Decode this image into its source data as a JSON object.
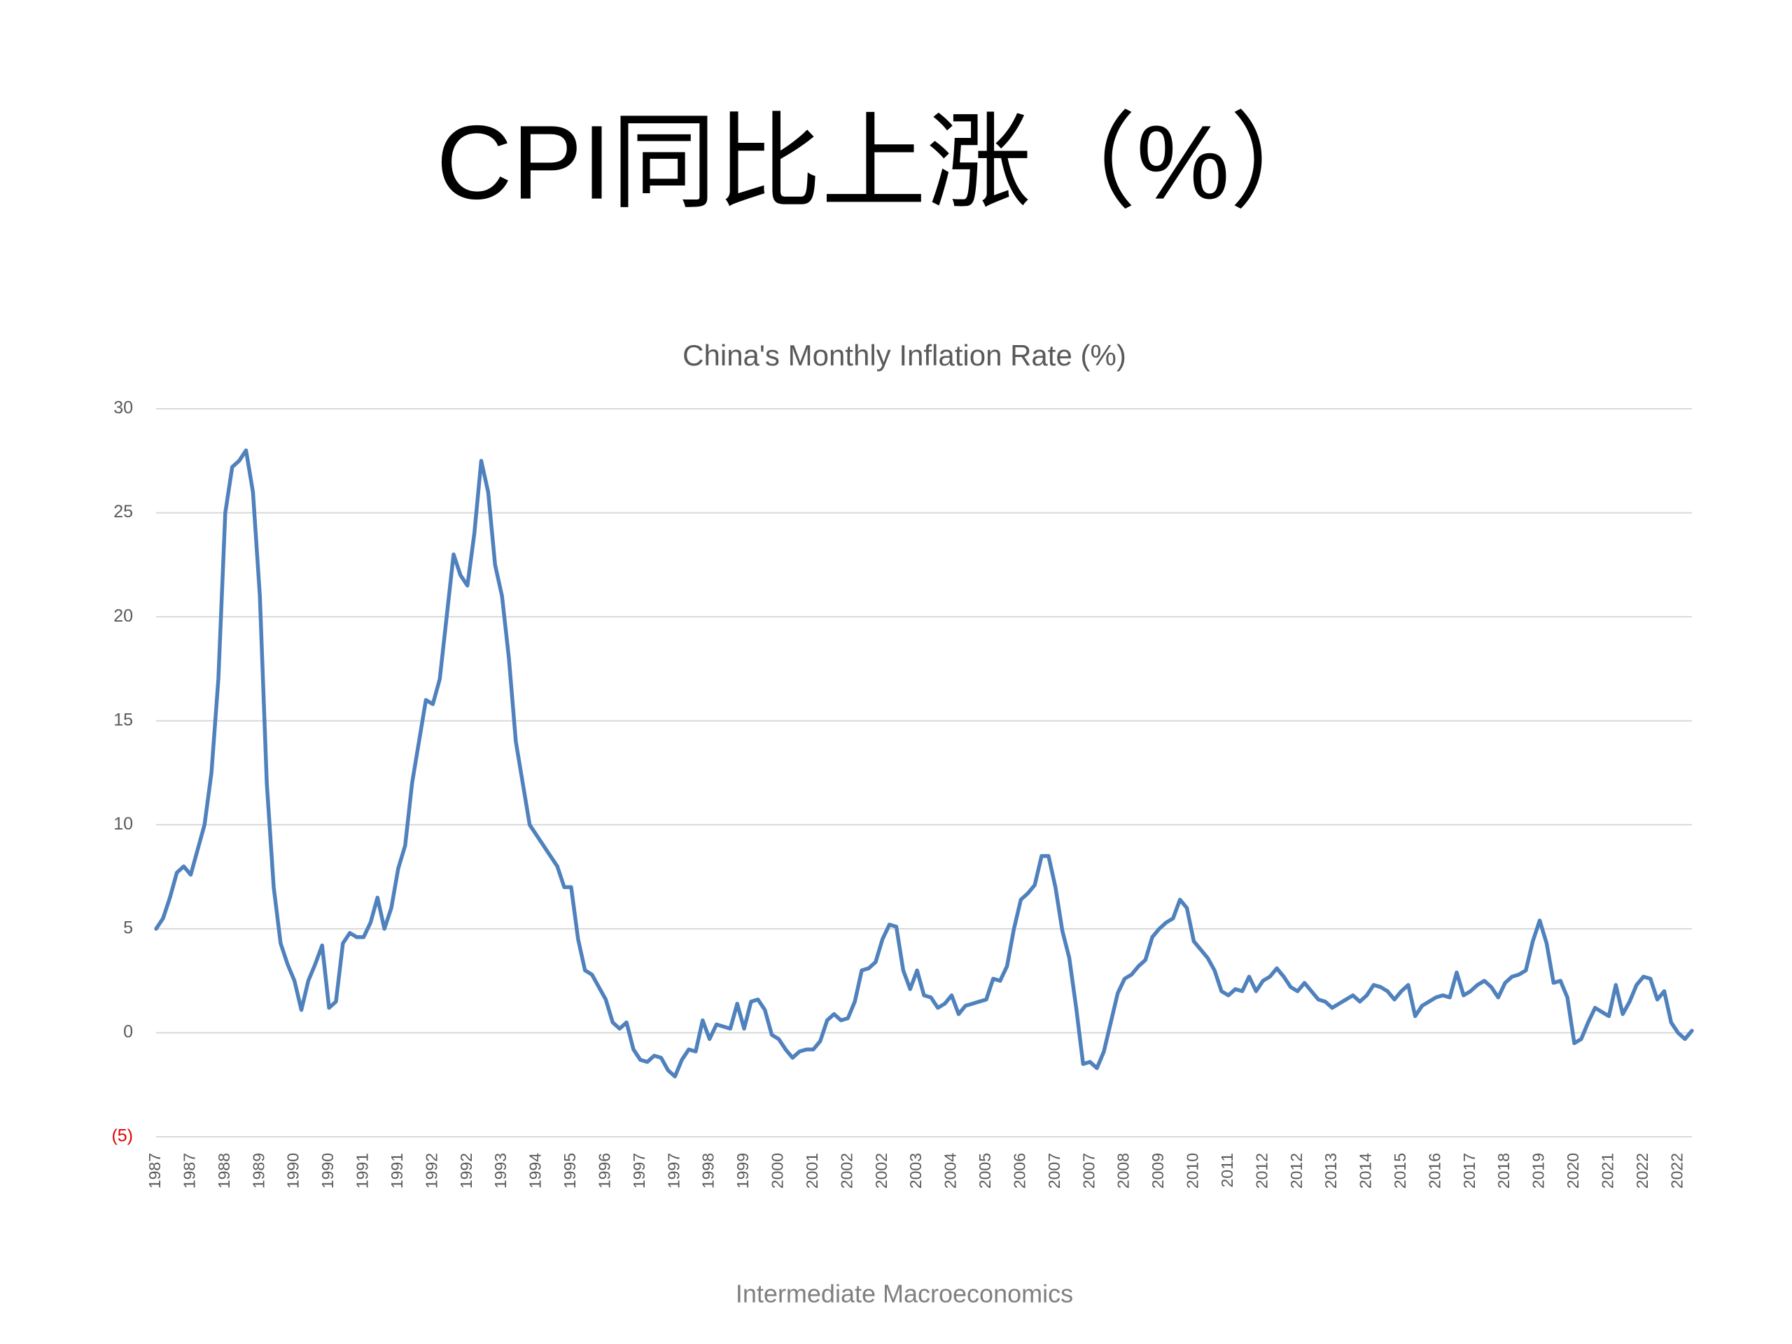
{
  "slide_title": "CPI同比上涨（%）",
  "footer": "Intermediate Macroeconomics",
  "chart_data": {
    "type": "line",
    "title": "China's Monthly Inflation Rate (%)",
    "color": "#4f81bd",
    "grid": true,
    "negative_tick_color": "#e00000",
    "ylim": [
      -5,
      30
    ],
    "yticks": [
      {
        "value": -5,
        "label": "(5)"
      },
      0,
      5,
      10,
      15,
      20,
      25,
      30
    ],
    "categories": [
      "1987",
      null,
      null,
      null,
      null,
      "1987",
      null,
      null,
      null,
      null,
      "1988",
      null,
      null,
      null,
      null,
      "1989",
      null,
      null,
      null,
      null,
      "1990",
      null,
      null,
      null,
      null,
      "1990",
      null,
      null,
      null,
      null,
      "1991",
      null,
      null,
      null,
      null,
      "1991",
      null,
      null,
      null,
      null,
      "1992",
      null,
      null,
      null,
      null,
      "1992",
      null,
      null,
      null,
      null,
      "1993",
      null,
      null,
      null,
      null,
      "1994",
      null,
      null,
      null,
      null,
      "1995",
      null,
      null,
      null,
      null,
      "1996",
      null,
      null,
      null,
      null,
      "1997",
      null,
      null,
      null,
      null,
      "1997",
      null,
      null,
      null,
      null,
      "1998",
      null,
      null,
      null,
      null,
      "1999",
      null,
      null,
      null,
      null,
      "2000",
      null,
      null,
      null,
      null,
      "2001",
      null,
      null,
      null,
      null,
      "2002",
      null,
      null,
      null,
      null,
      "2002",
      null,
      null,
      null,
      null,
      "2003",
      null,
      null,
      null,
      null,
      "2004",
      null,
      null,
      null,
      null,
      "2005",
      null,
      null,
      null,
      null,
      "2006",
      null,
      null,
      null,
      null,
      "2007",
      null,
      null,
      null,
      null,
      "2007",
      null,
      null,
      null,
      null,
      "2008",
      null,
      null,
      null,
      null,
      "2009",
      null,
      null,
      null,
      null,
      "2010",
      null,
      null,
      null,
      null,
      "2011",
      null,
      null,
      null,
      null,
      "2012",
      null,
      null,
      null,
      null,
      "2012",
      null,
      null,
      null,
      null,
      "2013",
      null,
      null,
      null,
      null,
      "2014",
      null,
      null,
      null,
      null,
      "2015",
      null,
      null,
      null,
      null,
      "2016",
      null,
      null,
      null,
      null,
      "2017",
      null,
      null,
      null,
      null,
      "2018",
      null,
      null,
      null,
      null,
      "2019",
      null,
      null,
      null,
      null,
      "2020",
      null,
      null,
      null,
      null,
      "2021",
      null,
      null,
      null,
      null,
      "2022",
      null,
      null,
      null,
      null,
      "2022",
      null,
      null
    ],
    "values": [
      5.0,
      5.5,
      6.5,
      7.7,
      8.0,
      7.6,
      8.8,
      10.0,
      12.5,
      17,
      25,
      27.2,
      27.5,
      28,
      26,
      21,
      12,
      7,
      4.3,
      3.3,
      2.5,
      1.1,
      2.5,
      3.3,
      4.2,
      1.2,
      1.5,
      4.3,
      4.8,
      4.6,
      4.6,
      5.3,
      6.5,
      5.0,
      6.0,
      7.9,
      9,
      12,
      14,
      16,
      15.8,
      17,
      20,
      23,
      22,
      21.5,
      24,
      27.5,
      26,
      22.5,
      21,
      18,
      14,
      12,
      10,
      9.5,
      9,
      8.5,
      8,
      7,
      7,
      4.5,
      3,
      2.8,
      2.2,
      1.6,
      0.5,
      0.2,
      0.5,
      -0.8,
      -1.3,
      -1.4,
      -1.1,
      -1.2,
      -1.8,
      -2.1,
      -1.3,
      -0.8,
      -0.9,
      0.6,
      -0.3,
      0.4,
      0.3,
      0.2,
      1.4,
      0.2,
      1.5,
      1.6,
      1.1,
      -0.1,
      -0.3,
      -0.8,
      -1.2,
      -0.9,
      -0.8,
      -0.8,
      -0.4,
      0.6,
      0.9,
      0.6,
      0.7,
      1.5,
      3.0,
      3.1,
      3.4,
      4.5,
      5.2,
      5.1,
      3.0,
      2.1,
      3.0,
      1.8,
      1.7,
      1.2,
      1.4,
      1.8,
      0.9,
      1.3,
      1.4,
      1.5,
      1.6,
      2.6,
      2.5,
      3.2,
      5.0,
      6.4,
      6.7,
      7.1,
      8.5,
      8.5,
      7.0,
      4.9,
      3.6,
      1.2,
      -1.5,
      -1.4,
      -1.7,
      -0.9,
      0.5,
      1.9,
      2.6,
      2.8,
      3.2,
      3.5,
      4.6,
      5.0,
      5.3,
      5.5,
      6.4,
      6.0,
      4.4,
      4.0,
      3.6,
      3.0,
      2.0,
      1.8,
      2.1,
      2.0,
      2.7,
      2.0,
      2.5,
      2.7,
      3.1,
      2.7,
      2.2,
      2.0,
      2.4,
      2.0,
      1.6,
      1.5,
      1.2,
      1.4,
      1.6,
      1.8,
      1.5,
      1.8,
      2.3,
      2.2,
      2.0,
      1.6,
      2.0,
      2.3,
      0.8,
      1.3,
      1.5,
      1.7,
      1.8,
      1.7,
      2.9,
      1.8,
      2.0,
      2.3,
      2.5,
      2.2,
      1.7,
      2.4,
      2.7,
      2.8,
      3.0,
      4.4,
      5.4,
      4.3,
      2.4,
      2.5,
      1.7,
      -0.5,
      -0.3,
      0.5,
      1.2,
      1.0,
      0.8,
      2.3,
      0.9,
      1.5,
      2.3,
      2.7,
      2.6,
      1.6,
      2.0,
      0.5,
      0.0,
      -0.3,
      0.1
    ]
  }
}
